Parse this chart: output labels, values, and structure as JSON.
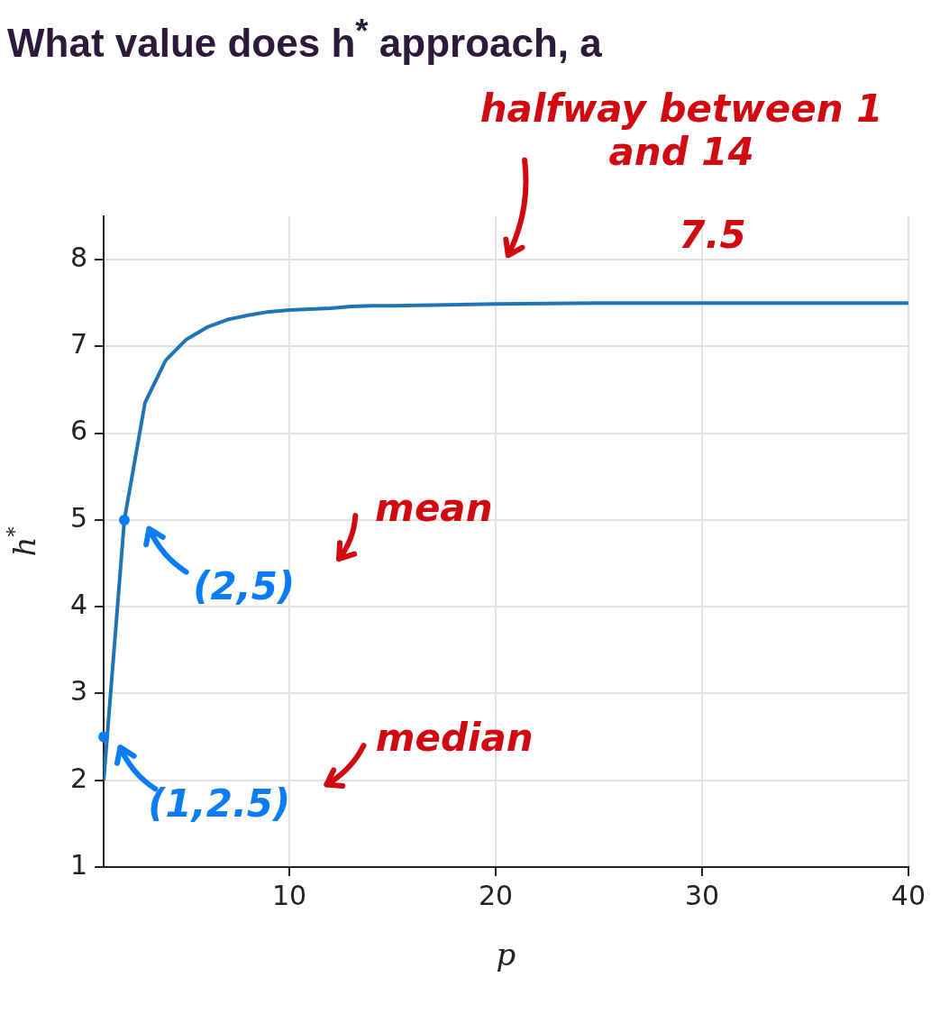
{
  "chart_data": {
    "type": "line",
    "title": "What value does h$^{*}$ approach, a",
    "xlabel": "p",
    "ylabel": "h$^{*}$",
    "x": [
      1,
      2,
      3,
      4,
      5,
      6,
      7,
      8,
      9,
      10,
      11,
      12,
      13,
      14,
      15,
      20,
      25,
      30,
      35,
      40
    ],
    "series": [
      {
        "color": "#2174b4",
        "values": [
          2,
          5,
          6.35,
          6.84,
          7.08,
          7.22,
          7.31,
          7.36,
          7.4,
          7.42,
          7.43,
          7.44,
          7.46,
          7.47,
          7.47,
          7.49,
          7.5,
          7.5,
          7.5,
          7.5
        ]
      }
    ],
    "xlim": [
      1,
      40
    ],
    "xticks": [
      10,
      20,
      30,
      40
    ],
    "ylim": [
      1,
      8.5
    ],
    "yticks": [
      1,
      2,
      3,
      4,
      5,
      6,
      7,
      8
    ],
    "grid": true,
    "marker": "none",
    "line_style": "solid",
    "annotations": [
      "halfway between 1 and 14",
      "7.5",
      "mean",
      "median",
      {
        "text": "(2,5)",
        "x": 2,
        "y": 5
      },
      {
        "text": "(1,2.5)",
        "x": 1,
        "y": 2.5
      }
    ]
  }
}
